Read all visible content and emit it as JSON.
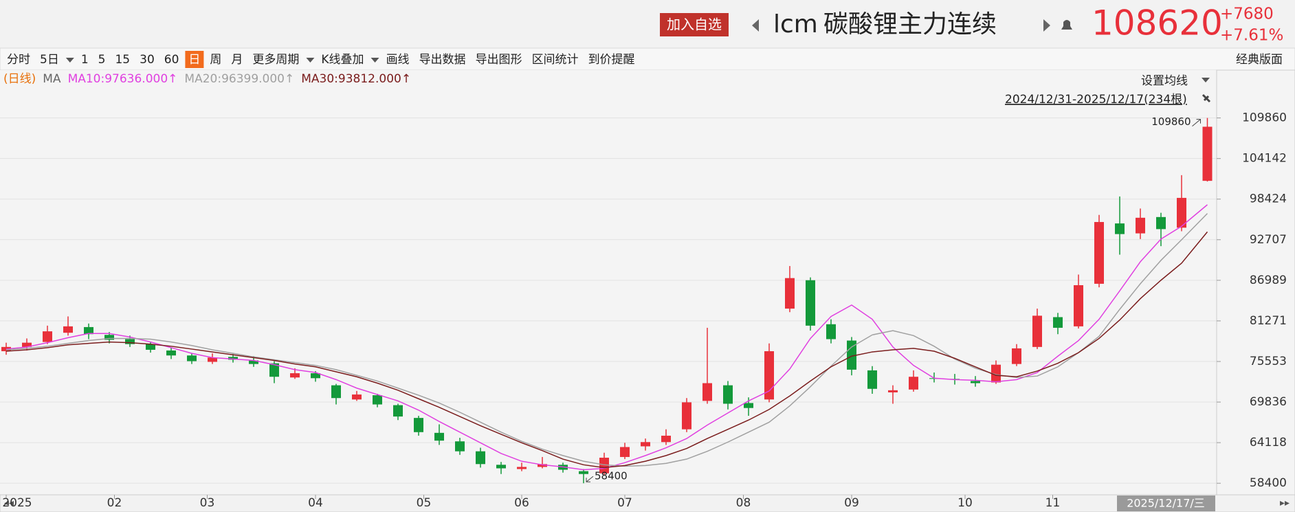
{
  "header": {
    "button": "加入自选",
    "symbol": "lcm",
    "name": "碳酸锂主力连续",
    "change": "+7680",
    "change_pct": "+7.61%"
  },
  "toolbar": [
    "分时",
    "5日",
    "1",
    "5",
    "15",
    "30",
    "60",
    "日",
    "周",
    "月",
    "更多周期",
    "K线叠加",
    "画线",
    "导出数据",
    "导出图形",
    "区间统计",
    "到价提醒"
  ],
  "layout_label": "经典版面",
  "chart_data": {
    "type": "candlestick",
    "period_label": "(日线)",
    "ma_label": "MA",
    "ma_setting": "设置均线",
    "range_label": "2024/12/31-2025/12/17(234根)",
    "cursor_label": "2025/12/17/三",
    "up_color": "#e8303a",
    "down_color": "#13993a",
    "grid": true,
    "xlim": [
      0,
      234
    ],
    "xticks": [
      {
        "value": 0,
        "label": "2025"
      },
      {
        "value": 21,
        "label": "02"
      },
      {
        "value": 39,
        "label": "03"
      },
      {
        "value": 60,
        "label": "04"
      },
      {
        "value": 81,
        "label": "05"
      },
      {
        "value": 100,
        "label": "06"
      },
      {
        "value": 120,
        "label": "07"
      },
      {
        "value": 143,
        "label": "08"
      },
      {
        "value": 164,
        "label": "09"
      },
      {
        "value": 186,
        "label": "10"
      },
      {
        "value": 203,
        "label": "11"
      }
    ],
    "ylim": [
      56770,
      116600
    ],
    "yticks": [
      58400,
      64118,
      69836,
      75553,
      81271,
      86989,
      92707,
      98424,
      104142,
      109860
    ],
    "x": [
      0,
      4,
      8,
      12,
      16,
      20,
      24,
      28,
      32,
      36,
      40,
      44,
      48,
      52,
      56,
      60,
      64,
      68,
      72,
      76,
      80,
      84,
      88,
      92,
      96,
      100,
      104,
      108,
      112,
      116,
      120,
      124,
      128,
      132,
      136,
      140,
      144,
      148,
      152,
      156,
      160,
      164,
      168,
      172,
      176,
      180,
      184,
      188,
      192,
      196,
      200,
      204,
      208,
      212,
      216,
      220,
      224,
      228,
      233
    ],
    "open": [
      77000,
      77600,
      78300,
      79600,
      80400,
      79300,
      78700,
      78000,
      77100,
      76400,
      75500,
      76200,
      75700,
      75300,
      73300,
      73900,
      72200,
      70200,
      70800,
      69400,
      67600,
      65500,
      64300,
      62900,
      61000,
      60400,
      60700,
      61000,
      60100,
      59800,
      62100,
      63600,
      64200,
      66000,
      70000,
      72200,
      69700,
      70200,
      83000,
      87000,
      80800,
      78500,
      74300,
      71200,
      71600,
      73200,
      73100,
      72800,
      72600,
      75200,
      77600,
      81800,
      80500,
      86500,
      95000,
      93600,
      95900,
      94400,
      101000
    ],
    "high": [
      78200,
      78800,
      80600,
      81900,
      80900,
      79700,
      79200,
      78300,
      77500,
      76700,
      76700,
      76600,
      76300,
      75600,
      74600,
      74200,
      72400,
      71400,
      71000,
      69600,
      67900,
      66700,
      64800,
      63400,
      61400,
      61300,
      62100,
      61300,
      60400,
      62700,
      64100,
      64700,
      66000,
      70400,
      80300,
      72800,
      70500,
      78100,
      89000,
      87400,
      81500,
      79000,
      74900,
      72200,
      74300,
      74000,
      73800,
      73500,
      75700,
      78000,
      83000,
      82400,
      87800,
      96200,
      98800,
      97100,
      96500,
      101800,
      109860
    ],
    "low": [
      76500,
      77100,
      78000,
      79200,
      78700,
      78100,
      77600,
      76800,
      75900,
      75200,
      75200,
      75400,
      74800,
      72500,
      73100,
      72700,
      69500,
      70000,
      69100,
      67300,
      65100,
      63800,
      62400,
      60600,
      59700,
      60100,
      60500,
      59900,
      58400,
      59600,
      61800,
      63000,
      63800,
      65600,
      69600,
      68800,
      67900,
      69800,
      82500,
      79900,
      78100,
      73600,
      71000,
      69600,
      71300,
      72600,
      72300,
      72000,
      72400,
      74900,
      77300,
      79400,
      80200,
      86000,
      90600,
      92800,
      91800,
      93900,
      100900
    ],
    "close": [
      77600,
      78200,
      79800,
      80500,
      79400,
      78600,
      78000,
      77200,
      76400,
      75600,
      76100,
      75800,
      75200,
      73400,
      73900,
      73200,
      70400,
      70900,
      69500,
      67800,
      65600,
      64400,
      62900,
      61100,
      60500,
      60700,
      61100,
      60300,
      59700,
      62000,
      63500,
      64200,
      65100,
      69800,
      72500,
      69600,
      69000,
      77000,
      87300,
      80600,
      78700,
      74400,
      71700,
      71500,
      73400,
      73100,
      73000,
      72500,
      75100,
      77400,
      82000,
      80300,
      86300,
      95200,
      93500,
      95800,
      94200,
      98600,
      108620
    ],
    "series": [
      {
        "name": "MA10:97636.000↑",
        "color": "#e040e0",
        "values": [
          77300,
          77600,
          78200,
          78900,
          79500,
          79500,
          79000,
          78300,
          77500,
          76700,
          76100,
          75900,
          75700,
          75100,
          74400,
          74000,
          73000,
          71800,
          70900,
          70000,
          68700,
          67100,
          65600,
          64100,
          62600,
          61500,
          61000,
          60700,
          60300,
          60500,
          61300,
          62300,
          63400,
          64700,
          66600,
          68300,
          70000,
          71400,
          74500,
          78800,
          81900,
          83500,
          81500,
          77600,
          75000,
          73200,
          73000,
          72900,
          72700,
          73000,
          74000,
          76300,
          78500,
          81500,
          85500,
          89600,
          92800,
          94600,
          97636
        ]
      },
      {
        "name": "MA20:96399.000↑",
        "color": "#a0a0a0",
        "values": [
          77200,
          77400,
          77700,
          78100,
          78500,
          78800,
          78800,
          78700,
          78300,
          77800,
          77200,
          76700,
          76200,
          75800,
          75400,
          75000,
          74400,
          73600,
          72800,
          71800,
          70800,
          69700,
          68400,
          67000,
          65600,
          64300,
          63200,
          62300,
          61500,
          61000,
          60800,
          60900,
          61200,
          61800,
          62900,
          64200,
          65600,
          67000,
          69300,
          72000,
          74900,
          77600,
          79300,
          79900,
          79200,
          77700,
          75900,
          74600,
          73700,
          73300,
          73500,
          74800,
          76800,
          79100,
          82900,
          86500,
          89800,
          92700,
          96399
        ]
      },
      {
        "name": "MA30:93812.000↑",
        "color": "#7a1c1c",
        "values": [
          77000,
          77200,
          77500,
          77900,
          78100,
          78300,
          78200,
          78000,
          77700,
          77300,
          76900,
          76500,
          76100,
          75700,
          75200,
          74800,
          74100,
          73400,
          72500,
          71500,
          70300,
          69100,
          67800,
          66500,
          65300,
          64100,
          63000,
          61800,
          61000,
          60600,
          60900,
          61500,
          62300,
          63300,
          64700,
          66000,
          67300,
          68800,
          70700,
          72800,
          74800,
          76300,
          76900,
          77200,
          77400,
          77000,
          76000,
          74800,
          73600,
          73400,
          74200,
          75300,
          76800,
          78800,
          81400,
          84400,
          87000,
          89400,
          93812
        ]
      }
    ]
  }
}
